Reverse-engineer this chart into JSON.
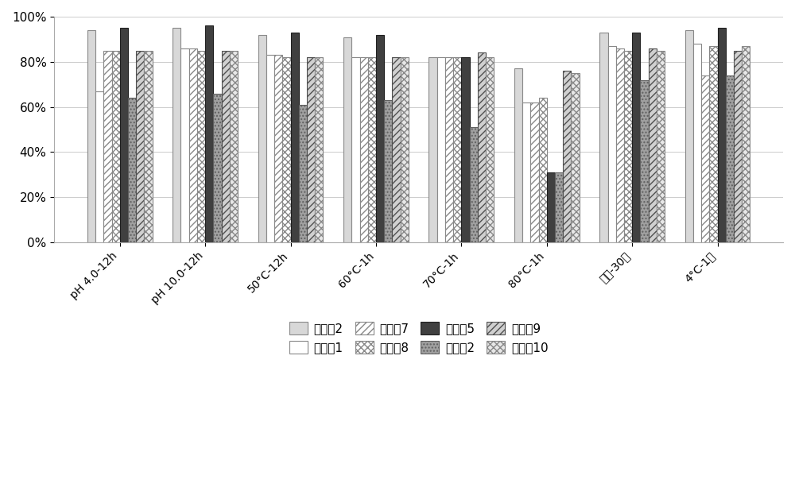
{
  "categories": [
    "pH 4.0-12h",
    "pH 10.0-12h",
    "50°C-12h",
    "60°C-1h",
    "70°C-1h",
    "80°C-1h",
    "常温-30天",
    "4°C-1年"
  ],
  "series": [
    {
      "label": "实施例2",
      "values": [
        0.94,
        0.95,
        0.92,
        0.91,
        0.82,
        0.77,
        0.93,
        0.94
      ],
      "color": "#d8d8d8",
      "hatch": "",
      "edgecolor": "#888888"
    },
    {
      "label": "对比例1",
      "values": [
        0.67,
        0.86,
        0.83,
        0.82,
        0.82,
        0.62,
        0.87,
        0.88
      ],
      "color": "#ffffff",
      "hatch": "",
      "edgecolor": "#888888"
    },
    {
      "label": "实施例7",
      "values": [
        0.85,
        0.86,
        0.83,
        0.82,
        0.82,
        0.62,
        0.86,
        0.74
      ],
      "color": "#ffffff",
      "hatch": "////",
      "edgecolor": "#888888"
    },
    {
      "label": "实施例8",
      "values": [
        0.85,
        0.85,
        0.82,
        0.82,
        0.82,
        0.64,
        0.85,
        0.87
      ],
      "color": "#ffffff",
      "hatch": "xxxx",
      "edgecolor": "#888888"
    },
    {
      "label": "实施例5",
      "values": [
        0.95,
        0.96,
        0.93,
        0.92,
        0.82,
        0.31,
        0.93,
        0.95
      ],
      "color": "#404040",
      "hatch": "",
      "edgecolor": "#202020"
    },
    {
      "label": "对比例2",
      "values": [
        0.64,
        0.66,
        0.61,
        0.63,
        0.51,
        0.31,
        0.72,
        0.74
      ],
      "color": "#a0a0a0",
      "hatch": "....",
      "edgecolor": "#606060"
    },
    {
      "label": "实施例9",
      "values": [
        0.85,
        0.85,
        0.82,
        0.82,
        0.84,
        0.76,
        0.86,
        0.85
      ],
      "color": "#d0d0d0",
      "hatch": "////",
      "edgecolor": "#505050"
    },
    {
      "label": "实施例10",
      "values": [
        0.85,
        0.85,
        0.82,
        0.82,
        0.82,
        0.75,
        0.85,
        0.87
      ],
      "color": "#e8e8e8",
      "hatch": "xxxx",
      "edgecolor": "#888888"
    }
  ],
  "ylim": [
    0,
    1.0
  ],
  "yticks": [
    0.0,
    0.2,
    0.4,
    0.6,
    0.8,
    1.0
  ],
  "ytick_labels": [
    "0%",
    "20%",
    "40%",
    "60%",
    "80%",
    "100%"
  ],
  "bar_width": 0.095,
  "figsize": [
    10,
    6.18
  ],
  "dpi": 100,
  "legend_order": [
    0,
    1,
    2,
    3,
    4,
    5,
    6,
    7
  ]
}
